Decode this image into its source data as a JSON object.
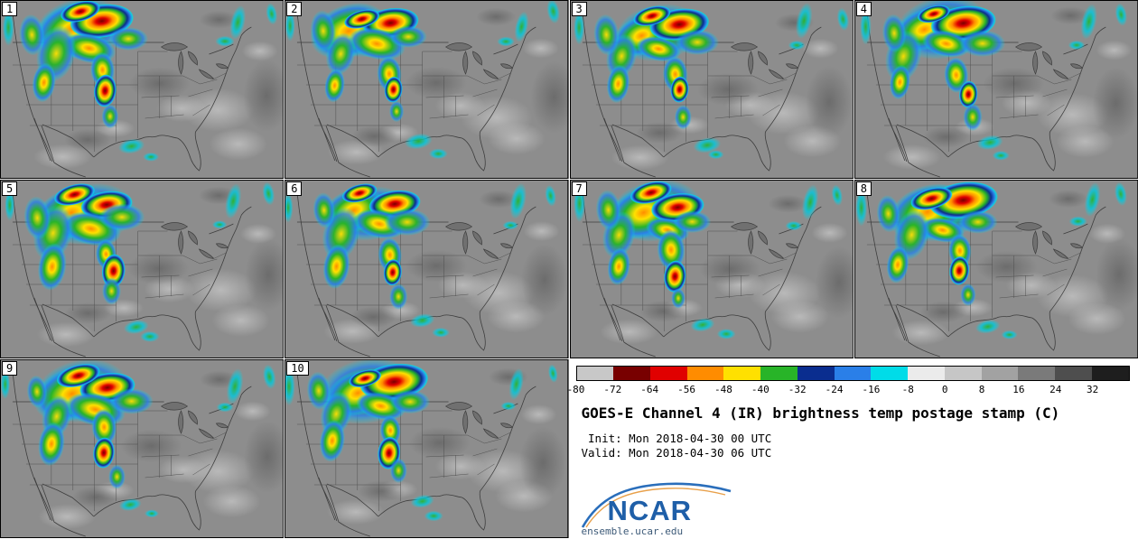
{
  "panels": [
    {
      "label": "1"
    },
    {
      "label": "2"
    },
    {
      "label": "3"
    },
    {
      "label": "4"
    },
    {
      "label": "5"
    },
    {
      "label": "6"
    },
    {
      "label": "7"
    },
    {
      "label": "8"
    },
    {
      "label": "9"
    },
    {
      "label": "10"
    }
  ],
  "legend": {
    "title": "GOES-E Channel 4 (IR) brightness temp postage stamp (C)",
    "init_line": " Init: Mon 2018-04-30 00 UTC",
    "valid_line": "Valid: Mon 2018-04-30 06 UTC",
    "logo_text": "NCAR",
    "url": "ensemble.ucar.edu",
    "colorbar": {
      "tick_labels": [
        "-80",
        "-72",
        "-64",
        "-56",
        "-48",
        "-40",
        "-32",
        "-24",
        "-16",
        "-8",
        "0",
        "8",
        "16",
        "24",
        "32"
      ],
      "segment_colors": [
        "#c8c8c8",
        "#780000",
        "#e00000",
        "#ff8c00",
        "#ffe000",
        "#28b428",
        "#0a2d8f",
        "#2a7fe8",
        "#00dce8",
        "#ebebeb",
        "#c6c6c6",
        "#a2a2a2",
        "#7a7a7a",
        "#4e4e4e",
        "#1e1e1e"
      ]
    }
  },
  "palette": {
    "map_background": "#8d8d8d",
    "map_lines": "#3e3e3e",
    "state_lines": "#4a4a4a",
    "lake_fill": "#707070",
    "storm_maroon": "#780000",
    "storm_red": "#e00000",
    "storm_orange": "#ff8c00",
    "storm_yellow": "#ffe000",
    "storm_green": "#28b428",
    "storm_navy": "#0a2d8f",
    "storm_blue": "#2a7fe8",
    "storm_cyan": "#00dce8",
    "logo_blue": "#1f5fa8"
  }
}
